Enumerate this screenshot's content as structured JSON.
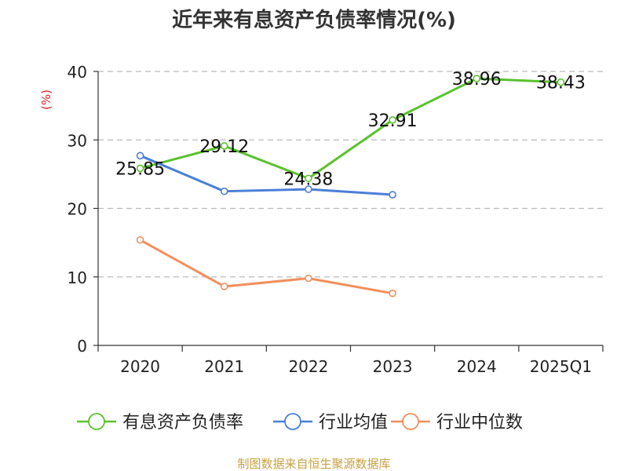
{
  "chart_data": {
    "type": "line",
    "title": "近年来有息资产负债率情况(%)",
    "ylabel": "(%)",
    "xlabel": "",
    "categories": [
      "2020",
      "2021",
      "2022",
      "2023",
      "2024",
      "2025Q1"
    ],
    "ylim": [
      0,
      40
    ],
    "yticks": [
      0,
      10,
      20,
      30,
      40
    ],
    "grid": "horizontal dashed",
    "legend_position": "bottom",
    "series": [
      {
        "name": "有息资产负债率",
        "color": "#5ac22d",
        "values": [
          25.85,
          29.12,
          24.38,
          32.91,
          38.96,
          38.43
        ],
        "data_labels": [
          "25.85",
          "29.12",
          "24.38",
          "32.91",
          "38.96",
          "38.43"
        ]
      },
      {
        "name": "行业均值",
        "color": "#4a7fd6",
        "values": [
          27.7,
          22.5,
          22.8,
          22.0,
          null,
          null
        ]
      },
      {
        "name": "行业中位数",
        "color": "#f28e5c",
        "values": [
          15.4,
          8.6,
          9.8,
          7.6,
          null,
          null
        ]
      }
    ]
  },
  "footer": {
    "source": "制图数据来自恒生聚源数据库",
    "source_color": "#c8a040"
  },
  "colors": {
    "axis": "#333333",
    "grid": "#bbbbbb",
    "ylabel": "#e02020"
  }
}
